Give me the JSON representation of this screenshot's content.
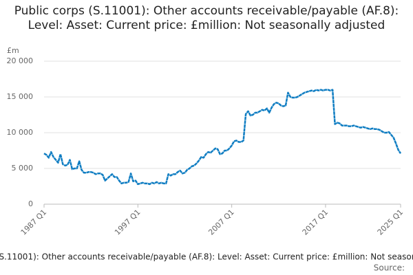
{
  "chart_data": {
    "type": "line",
    "title": "Public corps (S.11001): Other accounts receivable/payable (AF.8): Level: Asset: Current price: £million: Not seasonally adjusted",
    "y_label": "£m",
    "source_label": "Source:",
    "categories": [
      "1987 Q1",
      null,
      null,
      null,
      null,
      null,
      null,
      null,
      null,
      null,
      null,
      null,
      null,
      null,
      null,
      null,
      null,
      null,
      null,
      null,
      null,
      null,
      null,
      null,
      null,
      null,
      null,
      null,
      null,
      null,
      null,
      null,
      null,
      null,
      null,
      null,
      null,
      null,
      null,
      null,
      "1997 Q1",
      null,
      null,
      null,
      null,
      null,
      null,
      null,
      null,
      null,
      null,
      null,
      null,
      null,
      null,
      null,
      null,
      null,
      null,
      null,
      null,
      null,
      null,
      null,
      null,
      null,
      null,
      null,
      null,
      null,
      null,
      null,
      null,
      null,
      null,
      null,
      null,
      null,
      null,
      null,
      "2007 Q1",
      null,
      null,
      null,
      null,
      null,
      null,
      null,
      null,
      null,
      null,
      null,
      null,
      null,
      null,
      null,
      null,
      null,
      null,
      null,
      null,
      null,
      null,
      null,
      null,
      null,
      null,
      null,
      null,
      null,
      null,
      null,
      null,
      null,
      null,
      null,
      null,
      null,
      null,
      null,
      "2017 Q1",
      null,
      null,
      null,
      null,
      null,
      null,
      null,
      null,
      null,
      null,
      null,
      null,
      null,
      null,
      null,
      null,
      null,
      null,
      null,
      null,
      null,
      null,
      null,
      null,
      null,
      null,
      null,
      null,
      null,
      null,
      null,
      "2025 Q1"
    ],
    "series": [
      {
        "name": "Public corps (S.11001): Other accounts receivable/payable (AF.8): Level: Asset: Current price: £million: Not seasonally adjusted",
        "color": "#0f7dc2",
        "values": [
          7100,
          6900,
          6500,
          7300,
          6600,
          6200,
          5800,
          7000,
          5600,
          5400,
          5500,
          6200,
          4900,
          5000,
          5000,
          6000,
          4800,
          4400,
          4400,
          4500,
          4500,
          4400,
          4200,
          4300,
          4300,
          4100,
          3300,
          3600,
          3900,
          4200,
          3800,
          3800,
          3300,
          2900,
          3000,
          3000,
          3100,
          4300,
          3200,
          3300,
          2800,
          2900,
          3000,
          2900,
          2900,
          2800,
          3000,
          2900,
          3100,
          2900,
          3000,
          2900,
          2900,
          4200,
          4000,
          4200,
          4200,
          4500,
          4700,
          4300,
          4400,
          4800,
          5000,
          5300,
          5400,
          5700,
          6100,
          6600,
          6500,
          7000,
          7300,
          7200,
          7500,
          7800,
          7700,
          7000,
          7100,
          7500,
          7500,
          7800,
          8200,
          8800,
          8900,
          8700,
          8700,
          8900,
          12600,
          13000,
          12400,
          12500,
          12800,
          12800,
          13000,
          13200,
          13100,
          13400,
          12800,
          13500,
          14000,
          14200,
          14100,
          13800,
          13700,
          13800,
          15600,
          15000,
          14900,
          14900,
          15000,
          15200,
          15400,
          15600,
          15700,
          15800,
          15900,
          15800,
          16000,
          15900,
          16000,
          15900,
          16000,
          16000,
          15900,
          16000,
          11200,
          11400,
          11300,
          11000,
          11000,
          11000,
          10900,
          10900,
          11000,
          10900,
          10800,
          10700,
          10800,
          10700,
          10600,
          10500,
          10600,
          10500,
          10500,
          10400,
          10200,
          10000,
          10000,
          10100,
          9700,
          9300,
          8500,
          7600,
          7100
        ]
      }
    ],
    "ylim": [
      0,
      20000
    ],
    "yticks": [
      0,
      {
        "value": 5000,
        "label": "5 000"
      },
      {
        "value": 10000,
        "label": "10 000"
      },
      {
        "value": 15000,
        "label": "15 000"
      },
      {
        "value": 20000,
        "label": "20 000"
      }
    ],
    "grid": true
  }
}
